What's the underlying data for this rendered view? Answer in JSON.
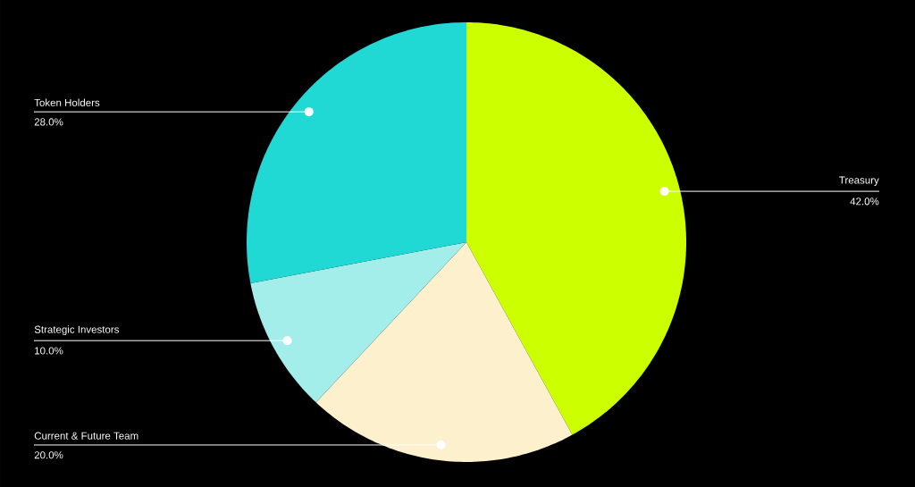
{
  "chart_data": {
    "type": "pie",
    "categories": [
      "Treasury",
      "Current & Future Team",
      "Strategic Investors",
      "Token Holders"
    ],
    "values": [
      42.0,
      20.0,
      10.0,
      28.0
    ],
    "value_labels": [
      "42.0%",
      "20.0%",
      "10.0%",
      "28.0%"
    ],
    "colors": [
      "#ccff00",
      "#fdf0cc",
      "#a3eeeb",
      "#20d9d5"
    ]
  }
}
